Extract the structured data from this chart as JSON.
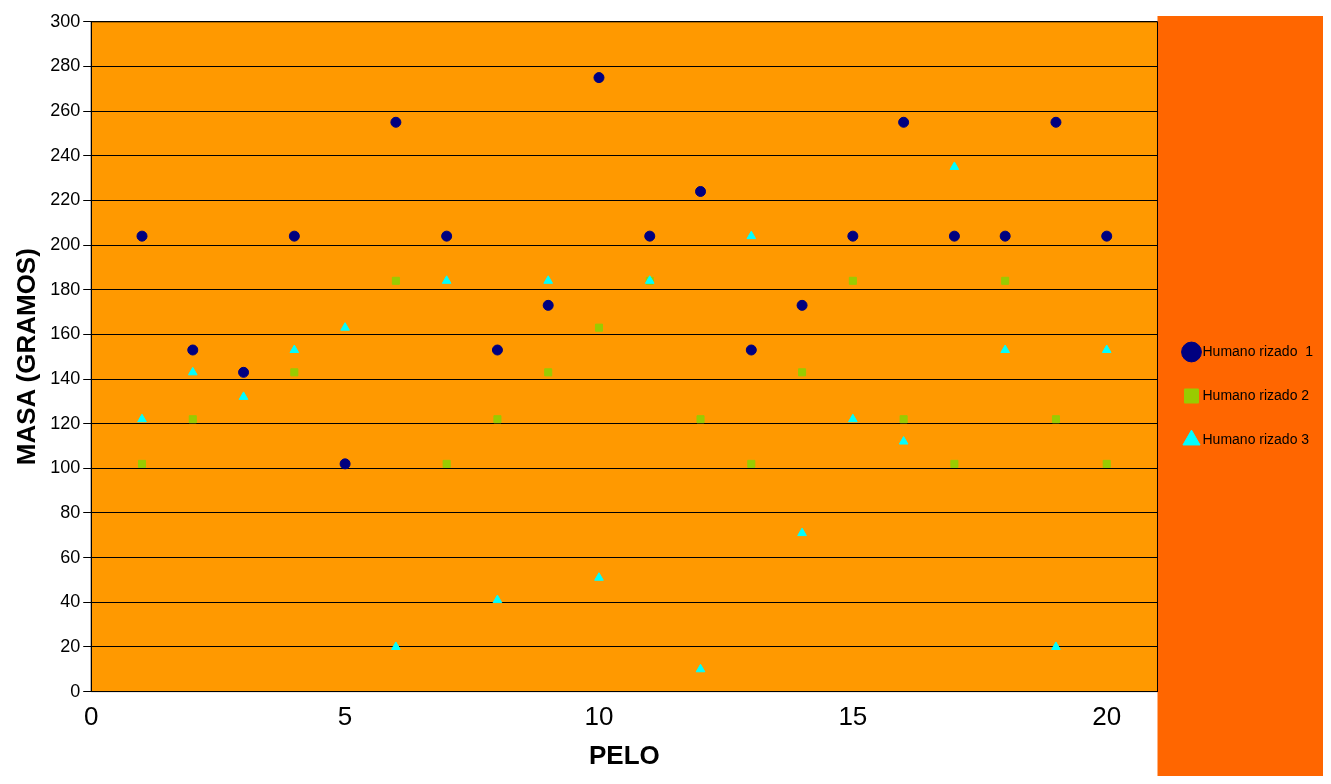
{
  "chart_data": {
    "type": "scatter",
    "xlabel": "PELO",
    "ylabel": "MASA (GRAMOS)",
    "x": [
      1,
      2,
      3,
      4,
      5,
      6,
      7,
      8,
      9,
      10,
      11,
      12,
      13,
      14,
      15,
      16,
      17,
      18,
      19,
      20
    ],
    "series": [
      {
        "name": "Humano rizado  1",
        "color": "#000080",
        "marker": "circle",
        "values": [
          204,
          153,
          143,
          204,
          102,
          255,
          204,
          153,
          173,
          275,
          204,
          224,
          153,
          173,
          204,
          255,
          204,
          204,
          255,
          204
        ]
      },
      {
        "name": "Humano rizado 2",
        "color": "#99cc00",
        "marker": "square",
        "values": [
          102,
          122,
          null,
          143,
          null,
          184,
          102,
          122,
          143,
          163,
          184,
          122,
          102,
          143,
          184,
          122,
          102,
          184,
          122,
          102
        ]
      },
      {
        "name": "Humano rizado 3",
        "color": "#00ffff",
        "marker": "triangle",
        "values": [
          122,
          143,
          132,
          153,
          163,
          20,
          184,
          41,
          184,
          51,
          184,
          10,
          204,
          71,
          122,
          112,
          235,
          153,
          20,
          153
        ]
      }
    ],
    "xlim": [
      0,
      21
    ],
    "xticks": [
      0,
      5,
      10,
      15,
      20
    ],
    "ylim": [
      0,
      300
    ],
    "yticks": [
      0,
      20,
      40,
      60,
      80,
      100,
      120,
      140,
      160,
      180,
      200,
      220,
      240,
      260,
      280,
      300
    ],
    "grid": "y",
    "legend": "right"
  }
}
